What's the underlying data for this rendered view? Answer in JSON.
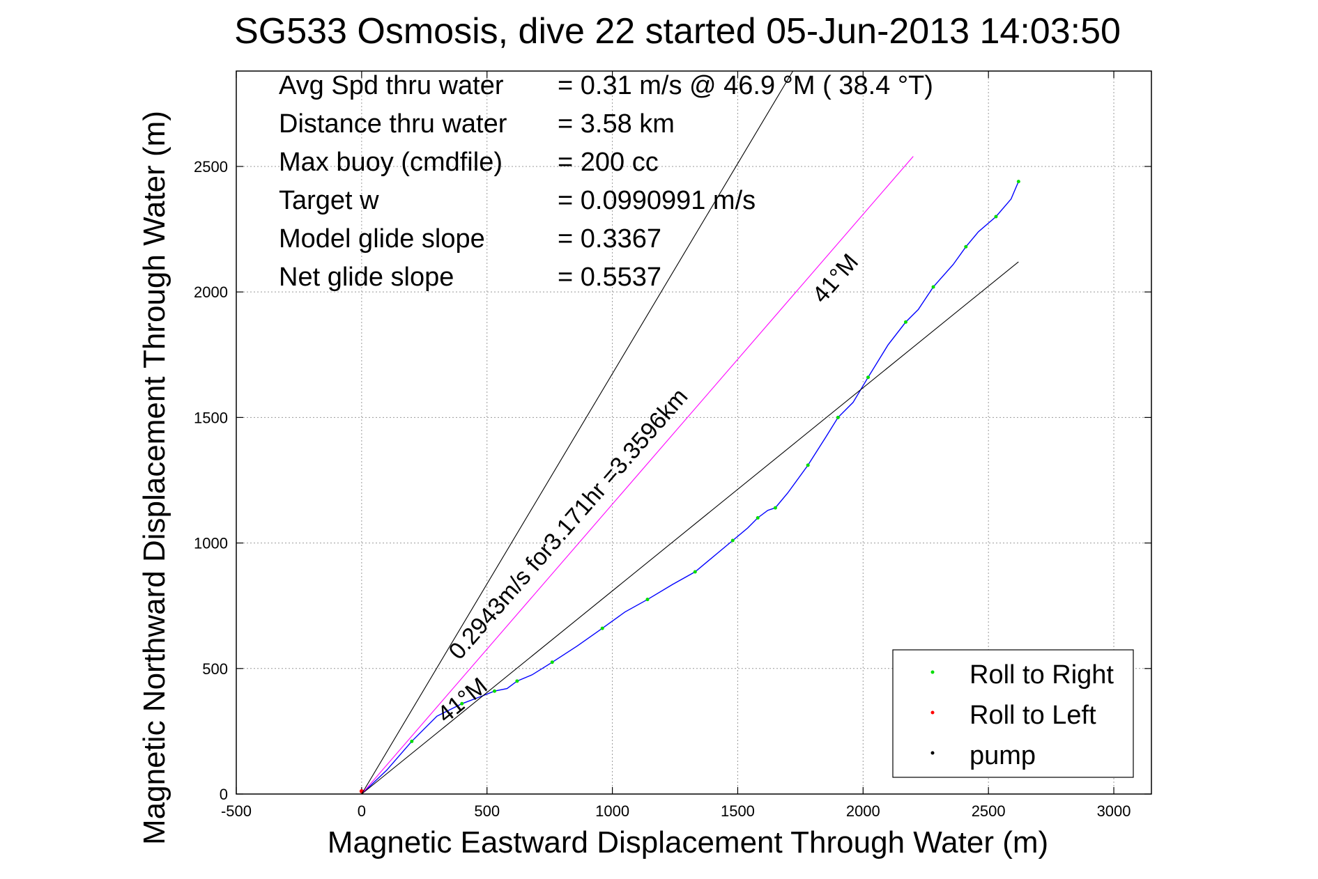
{
  "chart_data": {
    "type": "line",
    "title": "SG533 Osmosis, dive 22 started 05-Jun-2013 14:03:50",
    "xlabel": "Magnetic Eastward Displacement Through Water (m)",
    "ylabel": "Magnetic Northward Displacement Through Water (m)",
    "xlim": [
      -500,
      3150
    ],
    "ylim": [
      0,
      2880
    ],
    "xticks": [
      -500,
      0,
      500,
      1000,
      1500,
      2000,
      2500,
      3000
    ],
    "yticks": [
      0,
      500,
      1000,
      1500,
      2000,
      2500
    ],
    "xtick_labels": [
      "-500",
      "0",
      "500",
      "1000",
      "1500",
      "2000",
      "2500",
      "3000"
    ],
    "ytick_labels": [
      "0",
      "500",
      "1000",
      "1500",
      "2000",
      "2500"
    ],
    "grid": true,
    "legend_position": "bottom-right",
    "legend": [
      {
        "label": "Roll to Right",
        "color": "#00dd00"
      },
      {
        "label": "Roll to Left",
        "color": "#ff0000"
      },
      {
        "label": "pump",
        "color": "#000000"
      }
    ],
    "stats": [
      {
        "label": "Avg Spd thru water",
        "value": "=  0.31 m/s @  46.9 °M ( 38.4 °T)"
      },
      {
        "label": "Distance thru water",
        "value": "=  3.58 km"
      },
      {
        "label": "Max buoy (cmdfile)",
        "value": "= 200 cc"
      },
      {
        "label": "Target w",
        "value": "= 0.0990991 m/s"
      },
      {
        "label": "Model glide slope",
        "value": "= 0.3367"
      },
      {
        "label": "Net glide slope",
        "value": "= 0.5537"
      }
    ],
    "series": [
      {
        "color": "#0000ff",
        "x": [
          0,
          100,
          200,
          300,
          400,
          480,
          530,
          580,
          620,
          680,
          760,
          860,
          960,
          1050,
          1140,
          1240,
          1330,
          1420,
          1480,
          1540,
          1580,
          1620,
          1650,
          1700,
          1780,
          1850,
          1900,
          1960,
          2020,
          2100,
          2170,
          2220,
          2280,
          2360,
          2410,
          2460,
          2530,
          2590,
          2620
        ],
        "y": [
          0,
          95,
          210,
          310,
          360,
          390,
          410,
          420,
          450,
          475,
          525,
          590,
          660,
          725,
          775,
          835,
          885,
          960,
          1010,
          1060,
          1100,
          1130,
          1140,
          1200,
          1310,
          1420,
          1500,
          1560,
          1660,
          1790,
          1880,
          1930,
          2020,
          2110,
          2180,
          2240,
          2300,
          2370,
          2440
        ]
      },
      {
        "color": "#ff00ff",
        "x": [
          0,
          2200
        ],
        "y": [
          0,
          2540
        ]
      },
      {
        "color": "#000000",
        "x": [
          0,
          1720
        ],
        "y": [
          0,
          2880
        ]
      },
      {
        "color": "#000000",
        "x": [
          0,
          2620
        ],
        "y": [
          0,
          2120
        ]
      }
    ],
    "annotations": [
      {
        "text": "41°M",
        "x": 1840,
        "y": 1950,
        "angle": -49
      },
      {
        "text": "0.2943m/s for3.171hr =3.3596km",
        "x": 390,
        "y": 530,
        "angle": -49
      },
      {
        "text": "41°M",
        "x": 335,
        "y": 280,
        "angle": -39
      }
    ]
  }
}
